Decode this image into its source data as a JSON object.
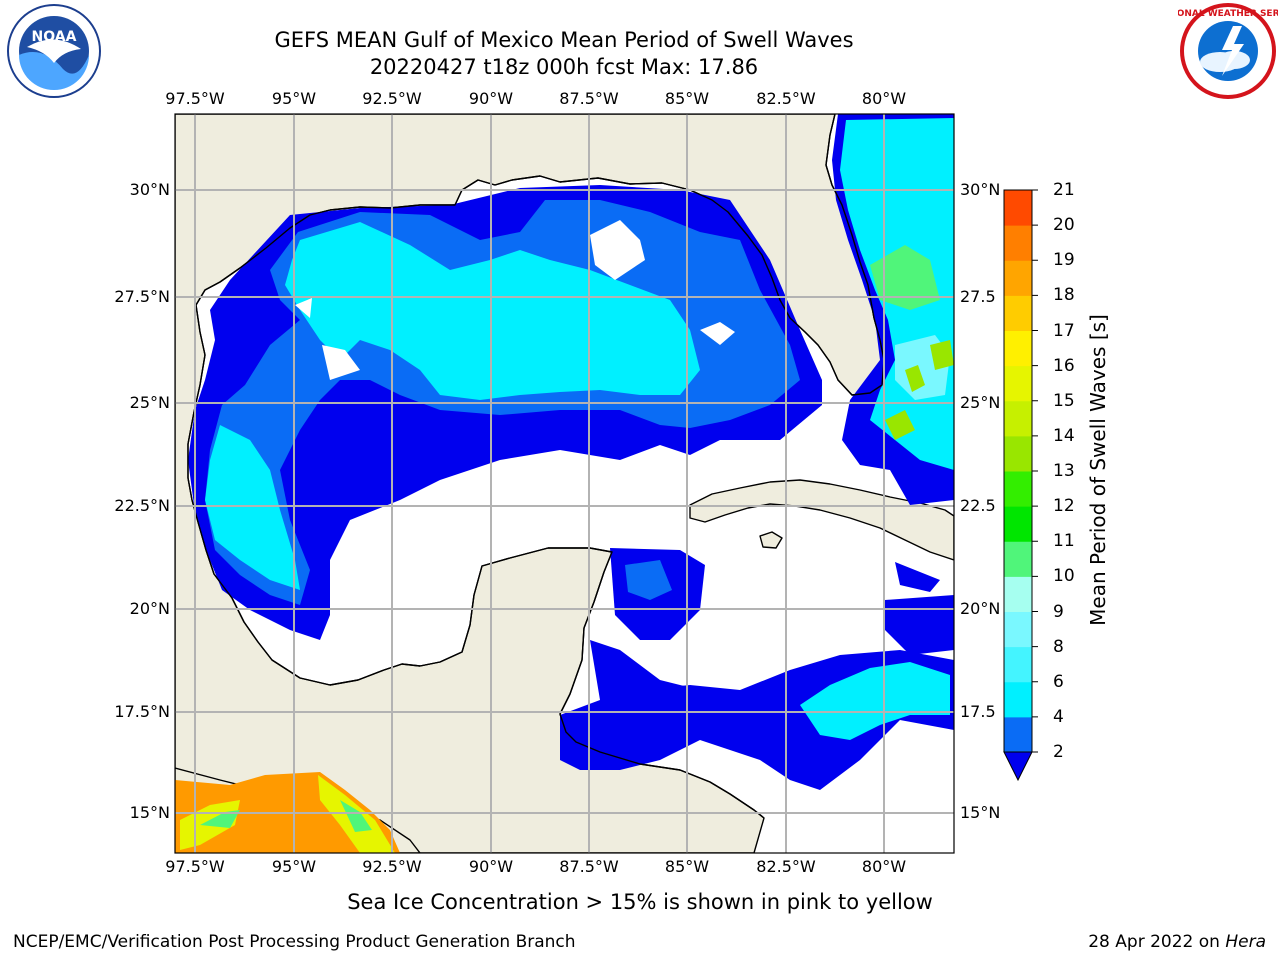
{
  "header": {
    "title_line1": "GEFS MEAN Gulf of Mexico Mean Period of Swell Waves",
    "title_line2": "20220427 t18z 000h fcst   Max: 17.86"
  },
  "map": {
    "lon_labels": [
      "97.5°W",
      "95°W",
      "92.5°W",
      "90°W",
      "87.5°W",
      "85°W",
      "82.5°W",
      "80°W"
    ],
    "lat_labels_left": [
      "30°N",
      "27.5°N",
      "25°N",
      "22.5°N",
      "20°N",
      "17.5°N",
      "15°N"
    ],
    "lat_labels_right": [
      "30°N",
      "27.5",
      "25°N",
      "22.5",
      "20°N",
      "17.5",
      "15°N"
    ],
    "colors": {
      "land": "#efedde",
      "ocean": "#ffffff",
      "grid": "#b3b3b3",
      "coast": "#000000"
    }
  },
  "colorbar": {
    "title": "Mean Period of Swell Waves [s]",
    "ticks": [
      "2",
      "4",
      "6",
      "8",
      "9",
      "10",
      "11",
      "12",
      "13",
      "14",
      "15",
      "16",
      "17",
      "18",
      "19",
      "20",
      "21"
    ],
    "colors": [
      "#0a6cf5",
      "#00f0ff",
      "#44f4ff",
      "#7af8ff",
      "#a6fff0",
      "#50f57a",
      "#00e600",
      "#33ee00",
      "#99e600",
      "#c6f000",
      "#e6f500",
      "#fff000",
      "#ffcc00",
      "#ffa500",
      "#ff7f00",
      "#ff4a00",
      "#ff1800",
      "#ff0000"
    ],
    "extend_color": "#0000ee"
  },
  "footer": {
    "note": "Sea Ice Concentration > 15% is shown in pink to yellow",
    "left": "NCEP/EMC/Verification Post Processing Product Generation Branch",
    "right_prefix": "28 Apr 2022 on ",
    "right_host": "Hera"
  },
  "logos": {
    "noaa_text": "NOAA",
    "nws_text": "NATIONAL WEATHER SERVICE"
  }
}
